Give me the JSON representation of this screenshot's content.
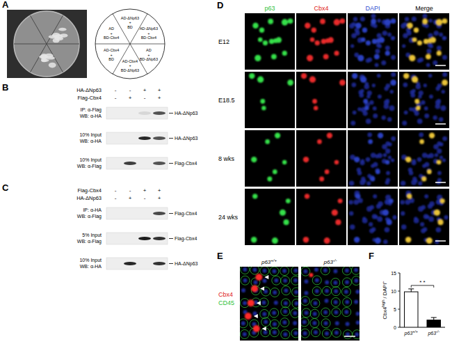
{
  "panels": {
    "A": {
      "label": "A",
      "sectors": [
        [
          "AD-ΔNp63",
          "+",
          "BD"
        ],
        [
          "AD-ΔNp63",
          "+",
          "BD-Cbx4"
        ],
        [
          "AD",
          "+",
          "BD-ΔNp63"
        ],
        [
          "AD-Cbx4",
          "+",
          "BD-ΔNp63"
        ],
        [
          "AD-Cbx4",
          "+",
          "BD"
        ],
        [
          "AD",
          "+",
          "BD-Cbx4"
        ]
      ]
    },
    "B": {
      "label": "B",
      "conditions": [
        {
          "name": "HA-ΔNp63",
          "signs": [
            "-",
            "-",
            "+",
            "+"
          ]
        },
        {
          "name": "Flag-Cbx4",
          "signs": [
            "-",
            "+",
            "-",
            "+"
          ]
        }
      ],
      "blots": [
        {
          "lines": [
            "IP: α-Flag",
            "WB: α-HA"
          ],
          "band": "HA-ΔNp63",
          "intensity": [
            0,
            0,
            0.1,
            0.7
          ]
        },
        {
          "lines": [
            "10% Input",
            "WB: α-HA"
          ],
          "band": "HA-ΔNp63",
          "intensity": [
            0,
            0,
            0.9,
            0.7
          ]
        },
        {
          "lines": [
            "10% Input",
            "WB: α-Flag"
          ],
          "band": "Flag-Cbx4",
          "intensity": [
            0,
            0.8,
            0,
            0.7
          ]
        }
      ]
    },
    "C": {
      "label": "C",
      "conditions": [
        {
          "name": "Flag-Cbx4",
          "signs": [
            "-",
            "-",
            "+",
            "+"
          ]
        },
        {
          "name": "HA-ΔNp63",
          "signs": [
            "-",
            "+",
            "-",
            "+"
          ]
        }
      ],
      "blots": [
        {
          "lines": [
            "IP: α-HA",
            "WB: α-Flag"
          ],
          "band": "Flag-Cbx4",
          "intensity": [
            0,
            0,
            0,
            0.75
          ]
        },
        {
          "lines": [
            "5% Input",
            "WB: α-Flag"
          ],
          "band": "Flag-Cbx4",
          "intensity": [
            0,
            0,
            0.95,
            0.85
          ]
        },
        {
          "lines": [
            "10% Input",
            "WB: α-HA"
          ],
          "band": "HA-ΔNp63",
          "intensity": [
            0,
            0.9,
            0,
            0.85
          ]
        }
      ]
    },
    "D": {
      "label": "D",
      "columns": [
        "p63",
        "Cbx4",
        "DAPI",
        "Merge"
      ],
      "rows": [
        "E12",
        "E18.5",
        "8 wks",
        "24 wks"
      ]
    },
    "E": {
      "label": "E",
      "genotypes": [
        "p63+/+",
        "p63-/-"
      ],
      "stains": [
        "Cbx4",
        "CD45"
      ]
    }
  },
  "chart_data": {
    "type": "bar",
    "label": "F",
    "categories": [
      "p63+/+",
      "p63-/-"
    ],
    "values": [
      9.8,
      2.0
    ],
    "errors": [
      0.8,
      0.7
    ],
    "colors": [
      "#ffffff",
      "#000000"
    ],
    "ylim": [
      0,
      15
    ],
    "yticks": [
      0,
      5,
      10,
      15
    ],
    "ylabel_parts": [
      {
        "text": "Cbx4"
      },
      {
        "text": "high",
        "sup": true
      },
      {
        "text": " / DAPI"
      },
      {
        "text": "+",
        "sup": true
      }
    ],
    "annotation": "* *"
  }
}
